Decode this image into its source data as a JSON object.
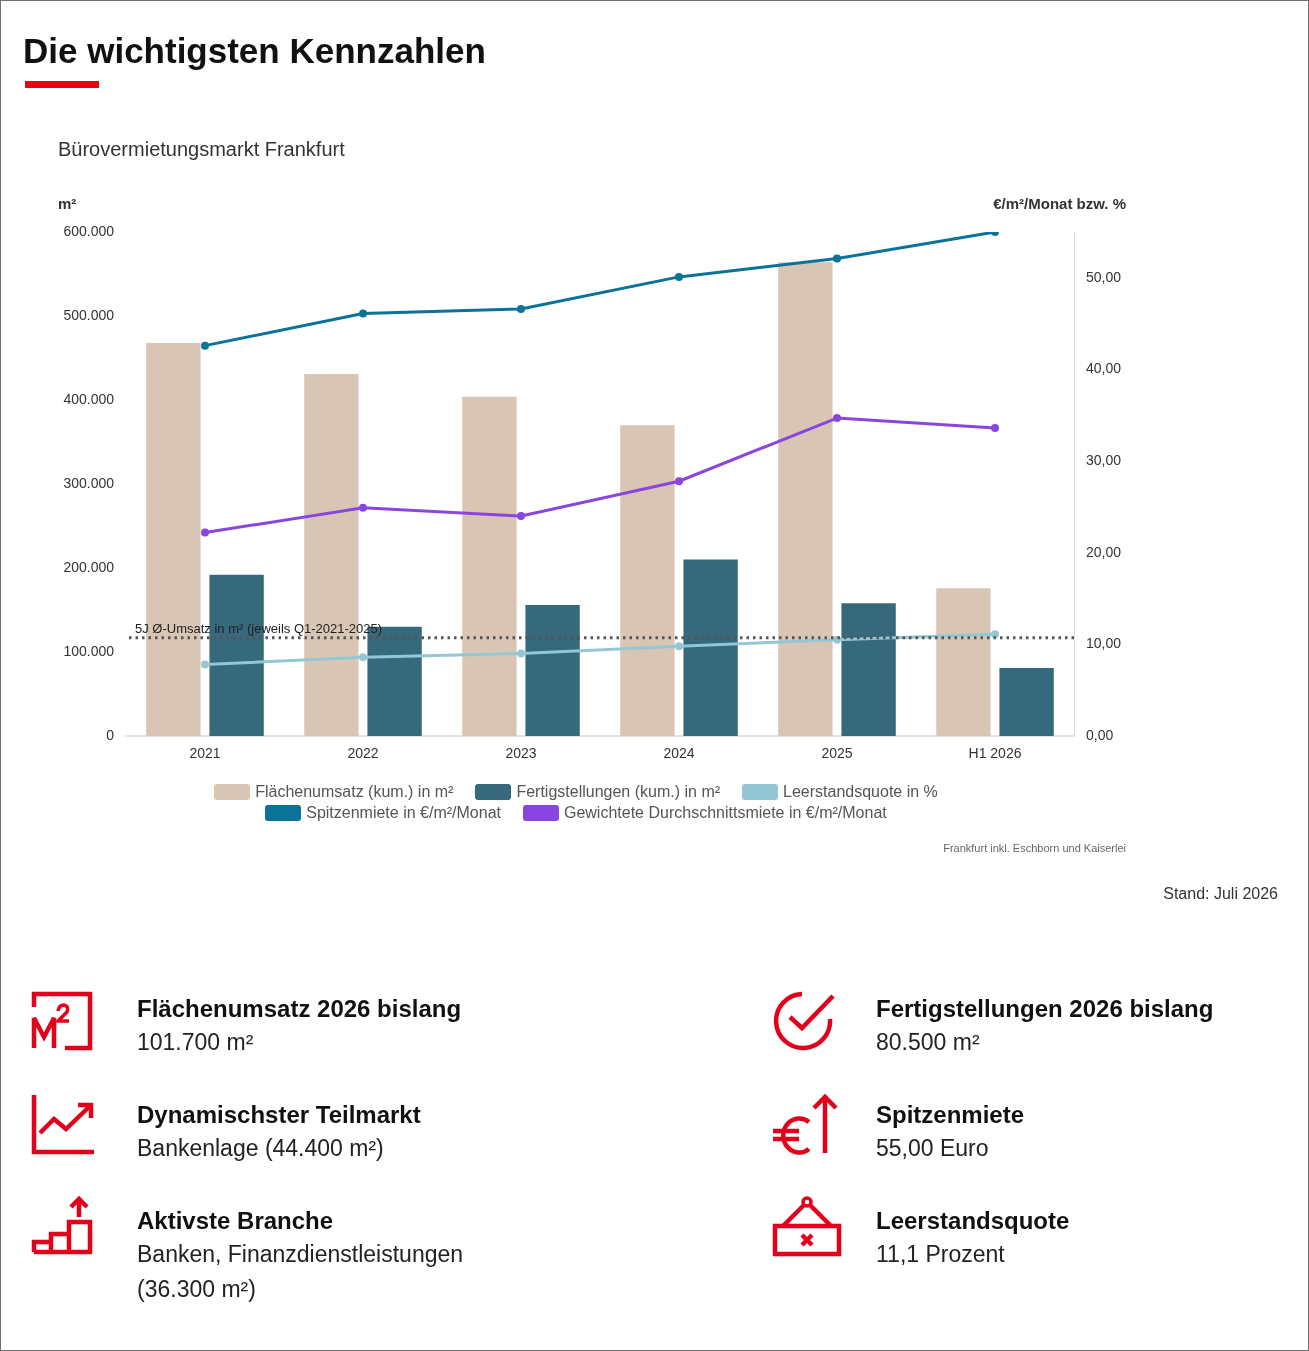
{
  "chart_data": [
    {
      "type": "bar",
      "title": "Die wichtigsten Kennzahlen",
      "subtitle": "Bürovermietungsmarkt Frankfurt",
      "ylabel": "m²",
      "y2label": "€/m²/Monat bzw. %",
      "categories": [
        "2021",
        "2022",
        "2023",
        "2024",
        "2025",
        "H1 2026"
      ],
      "series": [
        {
          "name": "Flächenumsatz (kum.) in m²",
          "type": "bar",
          "color": "#d9c5b4",
          "values": [
            468000,
            431000,
            404000,
            370000,
            564000,
            176000
          ]
        },
        {
          "name": "Fertigstellungen (kum.) in m²",
          "type": "bar",
          "color": "#36697b",
          "values": [
            192000,
            130000,
            156000,
            210000,
            158000,
            81000
          ]
        },
        {
          "name": "Leerstandsquote in %",
          "type": "line",
          "axis": "y2",
          "color": "#93c7d5",
          "values": [
            7.8,
            8.6,
            9.0,
            9.8,
            10.5,
            11.1
          ]
        },
        {
          "name": "Spitzenmiete in €/m²/Monat",
          "type": "line",
          "axis": "y2",
          "color": "#0b7398",
          "values": [
            42.6,
            46.1,
            46.6,
            50.1,
            52.1,
            55.0
          ]
        },
        {
          "name": "Gewichtete Durchschnittsmiete in €/m²/Monat",
          "type": "line",
          "axis": "y2",
          "color": "#8b45df",
          "values": [
            22.2,
            24.9,
            24.0,
            27.8,
            34.7,
            33.6
          ]
        }
      ],
      "ylim": [
        0,
        600000
      ],
      "yticks": [
        0,
        {
          "value": 100000,
          "label": "100.000"
        },
        {
          "value": 200000,
          "label": "200.000"
        },
        {
          "value": 300000,
          "label": "300.000"
        },
        {
          "value": 400000,
          "label": "400.000"
        },
        {
          "value": 500000,
          "label": "500.000"
        },
        {
          "value": 600000,
          "label": "600.000"
        }
      ],
      "y2lim": [
        0,
        55
      ],
      "y2ticks": [
        {
          "value": 0,
          "label": "0,00"
        },
        {
          "value": 10,
          "label": "10,00"
        },
        {
          "value": 20,
          "label": "20,00"
        },
        {
          "value": 30,
          "label": "30,00"
        },
        {
          "value": 40,
          "label": "40,00"
        },
        {
          "value": 50,
          "label": "50,00"
        }
      ],
      "ref_lines": [
        {
          "axis": "y",
          "value": 117000,
          "label": "5J Ø-Umsatz in m² (jeweils Q1-2021-2025)",
          "color": "#555555",
          "line_style": "dotted"
        }
      ],
      "legend": "bottom",
      "marker": "circle",
      "annotations": [
        "Frankfurt inkl. Eschborn und Kaiserlei",
        "Stand: Juli 2026"
      ]
    },
    {
      "type": "other",
      "annotations": [
        "Flächenumsatz 2026 bislang",
        "101.700 m²",
        "Fertigstellungen 2026 bislang",
        "80.500 m²",
        "Dynamischster Teilmarkt",
        "Bankenlage (44.400 m²)",
        "Spitzenmiete",
        "55,00 Euro",
        "Aktivste Branche",
        "Banken, Finanzdienstleistungen (36.300 m²)",
        "Leerstandsquote",
        "11,1 Prozent"
      ]
    }
  ]
}
